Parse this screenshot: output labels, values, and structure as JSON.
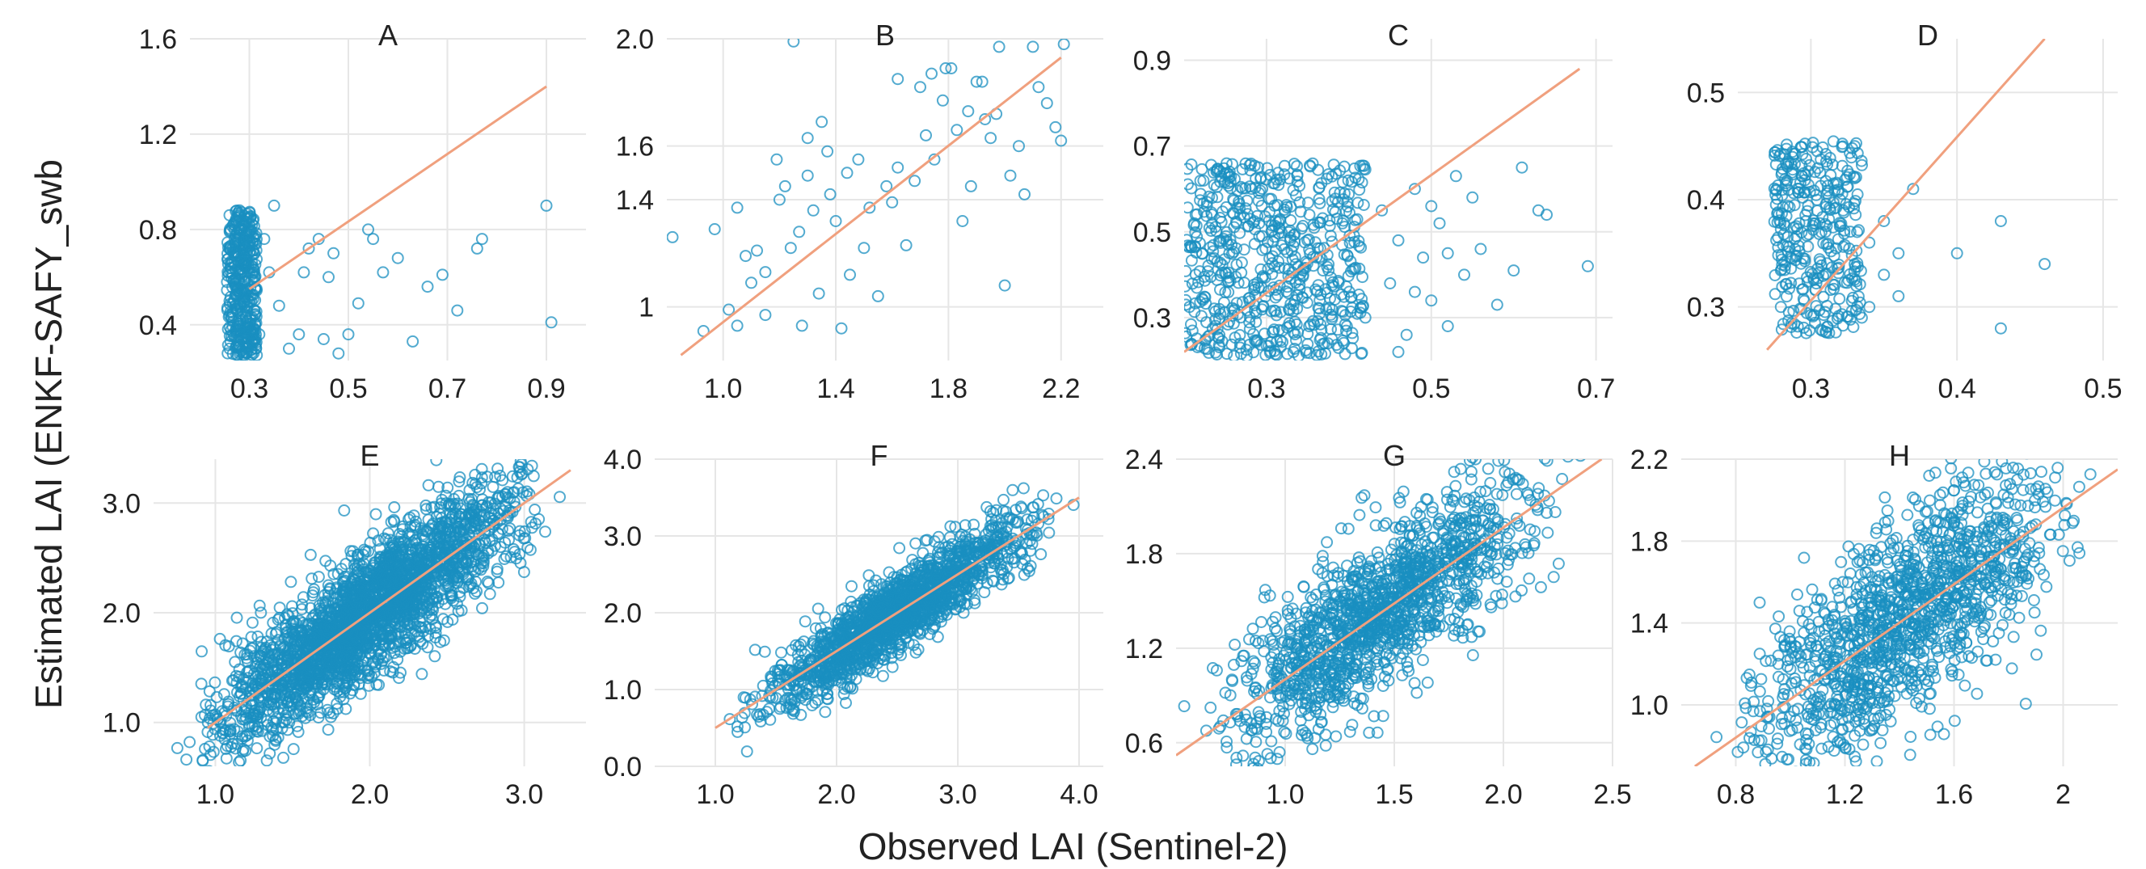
{
  "figure": {
    "ylabel": "Estimated LAI (ENKF-SAFY_swb",
    "xlabel": "Observed LAI (Sentinel-2)"
  },
  "colors": {
    "points": "#1a8fc0",
    "line": "#f0a07e",
    "grid": "#e6e6e6",
    "text": "#222222"
  },
  "chart_data": [
    {
      "type": "scatter",
      "title": "A",
      "xlim": [
        0.18,
        0.98
      ],
      "ylim": [
        0.25,
        1.6
      ],
      "xticks": [
        0.3,
        0.5,
        0.7,
        0.9
      ],
      "xtick_labels": [
        "0.3",
        "0.5",
        "0.7",
        "0.9"
      ],
      "yticks": [
        0.4,
        0.8,
        1.2,
        1.6
      ],
      "ytick_labels": [
        "0.4",
        "0.8",
        "1.2",
        "1.6"
      ],
      "line": [
        [
          0.3,
          0.55
        ],
        [
          0.9,
          1.4
        ]
      ],
      "points": [
        [
          0.26,
          0.3
        ],
        [
          0.27,
          0.35
        ],
        [
          0.28,
          0.42
        ],
        [
          0.26,
          0.5
        ],
        [
          0.29,
          0.58
        ],
        [
          0.27,
          0.66
        ],
        [
          0.28,
          0.74
        ],
        [
          0.3,
          0.82
        ],
        [
          0.26,
          0.86
        ],
        [
          0.29,
          0.38
        ],
        [
          0.31,
          0.46
        ],
        [
          0.3,
          0.62
        ],
        [
          0.27,
          0.8
        ],
        [
          0.28,
          0.28
        ],
        [
          0.31,
          0.7
        ],
        [
          0.29,
          0.54
        ],
        [
          0.32,
          0.36
        ],
        [
          0.26,
          0.44
        ],
        [
          0.3,
          0.32
        ],
        [
          0.28,
          0.88
        ],
        [
          0.33,
          0.76
        ],
        [
          0.34,
          0.62
        ],
        [
          0.35,
          0.9
        ],
        [
          0.36,
          0.48
        ],
        [
          0.38,
          0.3
        ],
        [
          0.4,
          0.36
        ],
        [
          0.41,
          0.62
        ],
        [
          0.42,
          0.72
        ],
        [
          0.44,
          0.76
        ],
        [
          0.45,
          0.34
        ],
        [
          0.46,
          0.6
        ],
        [
          0.47,
          0.7
        ],
        [
          0.48,
          0.28
        ],
        [
          0.5,
          0.36
        ],
        [
          0.52,
          0.49
        ],
        [
          0.54,
          0.8
        ],
        [
          0.55,
          0.76
        ],
        [
          0.57,
          0.62
        ],
        [
          0.6,
          0.68
        ],
        [
          0.63,
          0.33
        ],
        [
          0.66,
          0.56
        ],
        [
          0.69,
          0.61
        ],
        [
          0.72,
          0.46
        ],
        [
          0.76,
          0.72
        ],
        [
          0.77,
          0.76
        ],
        [
          0.9,
          0.9
        ],
        [
          0.91,
          0.41
        ]
      ],
      "cluster": {
        "x": [
          0.255,
          0.315
        ],
        "y": [
          0.27,
          0.88
        ],
        "n": 380
      }
    },
    {
      "type": "scatter",
      "title": "B",
      "xlim": [
        0.8,
        2.35
      ],
      "ylim": [
        0.8,
        2.0
      ],
      "xticks": [
        1.0,
        1.4,
        1.8,
        2.2
      ],
      "xtick_labels": [
        "1.0",
        "1.4",
        "1.8",
        "2.2"
      ],
      "yticks": [
        1.0,
        1.4,
        1.6,
        2.0
      ],
      "ytick_labels": [
        "1",
        "1.4",
        "1.6",
        "2.0"
      ],
      "line": [
        [
          0.85,
          0.82
        ],
        [
          2.2,
          1.93
        ]
      ],
      "points": [
        [
          0.82,
          1.26
        ],
        [
          0.93,
          0.91
        ],
        [
          0.97,
          1.29
        ],
        [
          1.02,
          0.99
        ],
        [
          1.05,
          0.93
        ],
        [
          1.05,
          1.37
        ],
        [
          1.08,
          1.19
        ],
        [
          1.1,
          1.09
        ],
        [
          1.12,
          1.21
        ],
        [
          1.15,
          1.13
        ],
        [
          1.15,
          0.97
        ],
        [
          1.19,
          1.55
        ],
        [
          1.2,
          1.4
        ],
        [
          1.22,
          1.45
        ],
        [
          1.24,
          1.22
        ],
        [
          1.25,
          1.99
        ],
        [
          1.27,
          1.28
        ],
        [
          1.28,
          0.93
        ],
        [
          1.3,
          1.63
        ],
        [
          1.3,
          1.49
        ],
        [
          1.32,
          1.36
        ],
        [
          1.34,
          1.05
        ],
        [
          1.35,
          1.69
        ],
        [
          1.37,
          1.58
        ],
        [
          1.38,
          1.42
        ],
        [
          1.4,
          1.32
        ],
        [
          1.42,
          0.92
        ],
        [
          1.44,
          1.5
        ],
        [
          1.45,
          1.12
        ],
        [
          1.48,
          1.55
        ],
        [
          1.5,
          1.22
        ],
        [
          1.52,
          1.37
        ],
        [
          1.55,
          1.04
        ],
        [
          1.58,
          1.45
        ],
        [
          1.6,
          1.39
        ],
        [
          1.62,
          1.52
        ],
        [
          1.65,
          1.23
        ],
        [
          1.68,
          1.47
        ],
        [
          1.7,
          1.82
        ],
        [
          1.72,
          1.64
        ],
        [
          1.74,
          1.87
        ],
        [
          1.75,
          1.55
        ],
        [
          1.78,
          1.77
        ],
        [
          1.79,
          1.89
        ],
        [
          1.81,
          1.89
        ],
        [
          1.83,
          1.66
        ],
        [
          1.85,
          1.32
        ],
        [
          1.87,
          1.73
        ],
        [
          1.9,
          1.84
        ],
        [
          1.92,
          1.84
        ],
        [
          1.93,
          1.7
        ],
        [
          1.95,
          1.63
        ],
        [
          1.97,
          1.72
        ],
        [
          2.0,
          1.08
        ],
        [
          2.02,
          1.49
        ],
        [
          2.05,
          1.6
        ],
        [
          2.07,
          1.42
        ],
        [
          2.1,
          1.97
        ],
        [
          2.12,
          1.82
        ],
        [
          2.15,
          1.76
        ],
        [
          2.18,
          1.67
        ],
        [
          2.2,
          1.62
        ],
        [
          2.21,
          1.98
        ],
        [
          1.62,
          1.85
        ],
        [
          1.88,
          1.45
        ],
        [
          1.98,
          1.97
        ]
      ]
    },
    {
      "type": "scatter",
      "title": "C",
      "xlim": [
        0.2,
        0.72
      ],
      "ylim": [
        0.2,
        0.95
      ],
      "xticks": [
        0.3,
        0.5,
        0.7
      ],
      "xtick_labels": [
        "0.3",
        "0.5",
        "0.7"
      ],
      "yticks": [
        0.3,
        0.5,
        0.7,
        0.9
      ],
      "ytick_labels": [
        "0.3",
        "0.5",
        "0.7",
        "0.9"
      ],
      "line": [
        [
          0.2,
          0.22
        ],
        [
          0.68,
          0.88
        ]
      ],
      "points": [
        [
          0.42,
          0.3
        ],
        [
          0.44,
          0.55
        ],
        [
          0.45,
          0.38
        ],
        [
          0.46,
          0.48
        ],
        [
          0.47,
          0.26
        ],
        [
          0.48,
          0.6
        ],
        [
          0.49,
          0.44
        ],
        [
          0.5,
          0.34
        ],
        [
          0.51,
          0.52
        ],
        [
          0.52,
          0.28
        ],
        [
          0.53,
          0.63
        ],
        [
          0.54,
          0.4
        ],
        [
          0.55,
          0.58
        ],
        [
          0.56,
          0.46
        ],
        [
          0.58,
          0.33
        ],
        [
          0.6,
          0.41
        ],
        [
          0.61,
          0.65
        ],
        [
          0.63,
          0.55
        ],
        [
          0.64,
          0.54
        ],
        [
          0.69,
          0.42
        ],
        [
          0.48,
          0.36
        ],
        [
          0.5,
          0.56
        ],
        [
          0.46,
          0.22
        ],
        [
          0.52,
          0.45
        ]
      ],
      "cluster": {
        "x": [
          0.2,
          0.42
        ],
        "y": [
          0.21,
          0.66
        ],
        "n": 620
      }
    },
    {
      "type": "scatter",
      "title": "D",
      "xlim": [
        0.25,
        0.51
      ],
      "ylim": [
        0.25,
        0.55
      ],
      "xticks": [
        0.3,
        0.4,
        0.5
      ],
      "xtick_labels": [
        "0.3",
        "0.4",
        "0.5"
      ],
      "yticks": [
        0.3,
        0.4,
        0.5
      ],
      "ytick_labels": [
        "0.3",
        "0.4",
        "0.5"
      ],
      "line": [
        [
          0.27,
          0.26
        ],
        [
          0.46,
          0.55
        ]
      ],
      "points": [
        [
          0.33,
          0.34
        ],
        [
          0.33,
          0.42
        ],
        [
          0.34,
          0.36
        ],
        [
          0.34,
          0.3
        ],
        [
          0.35,
          0.38
        ],
        [
          0.35,
          0.33
        ],
        [
          0.36,
          0.35
        ],
        [
          0.36,
          0.31
        ],
        [
          0.37,
          0.41
        ],
        [
          0.4,
          0.35
        ],
        [
          0.43,
          0.38
        ],
        [
          0.43,
          0.28
        ],
        [
          0.46,
          0.34
        ],
        [
          0.33,
          0.45
        ],
        [
          0.32,
          0.4
        ]
      ],
      "cluster": {
        "x": [
          0.275,
          0.335
        ],
        "y": [
          0.275,
          0.455
        ],
        "n": 340
      }
    },
    {
      "type": "scatter",
      "title": "E",
      "xlim": [
        0.6,
        3.4
      ],
      "ylim": [
        0.6,
        3.4
      ],
      "xticks": [
        1.0,
        2.0,
        3.0
      ],
      "xtick_labels": [
        "1.0",
        "2.0",
        "3.0"
      ],
      "yticks": [
        1.0,
        2.0,
        3.0
      ],
      "ytick_labels": [
        "1.0",
        "2.0",
        "3.0"
      ],
      "line": [
        [
          0.95,
          0.95
        ],
        [
          3.3,
          3.3
        ]
      ],
      "band": {
        "x": [
          0.65,
          3.3
        ],
        "spread": 0.28,
        "n": 2600
      }
    },
    {
      "type": "scatter",
      "title": "F",
      "xlim": [
        0.5,
        4.2
      ],
      "ylim": [
        0.0,
        4.0
      ],
      "xticks": [
        1.0,
        2.0,
        3.0,
        4.0
      ],
      "xtick_labels": [
        "1.0",
        "2.0",
        "3.0",
        "4.0"
      ],
      "yticks": [
        0.0,
        1.0,
        2.0,
        3.0,
        4.0
      ],
      "ytick_labels": [
        "0.0",
        "1.0",
        "2.0",
        "3.0",
        "4.0"
      ],
      "line": [
        [
          1.0,
          0.5
        ],
        [
          4.0,
          3.5
        ]
      ],
      "band": {
        "x": [
          1.0,
          4.0
        ],
        "spread": 0.25,
        "n": 1700
      }
    },
    {
      "type": "scatter",
      "title": "G",
      "xlim": [
        0.5,
        2.5
      ],
      "ylim": [
        0.45,
        2.4
      ],
      "xticks": [
        1.0,
        1.5,
        2.0,
        2.5
      ],
      "xtick_labels": [
        "1.0",
        "1.5",
        "2.0",
        "2.5"
      ],
      "yticks": [
        0.6,
        1.2,
        1.8,
        2.4
      ],
      "ytick_labels": [
        "0.6",
        "1.2",
        "1.8",
        "2.4"
      ],
      "line": [
        [
          0.5,
          0.52
        ],
        [
          2.45,
          2.4
        ]
      ],
      "band": {
        "x": [
          0.5,
          2.4
        ],
        "spread": 0.25,
        "n": 1400
      }
    },
    {
      "type": "scatter",
      "title": "H",
      "xlim": [
        0.6,
        2.2
      ],
      "ylim": [
        0.7,
        2.2
      ],
      "xticks": [
        0.8,
        1.2,
        1.6,
        2.0
      ],
      "xtick_labels": [
        "0.8",
        "1.2",
        "1.6",
        "2"
      ],
      "yticks": [
        1.0,
        1.4,
        1.8,
        2.2
      ],
      "ytick_labels": [
        "1.0",
        "1.4",
        "1.8",
        "2.2"
      ],
      "line": [
        [
          0.65,
          0.7
        ],
        [
          2.2,
          2.15
        ]
      ],
      "band": {
        "x": [
          0.62,
          2.2
        ],
        "spread": 0.24,
        "n": 1300
      }
    }
  ]
}
